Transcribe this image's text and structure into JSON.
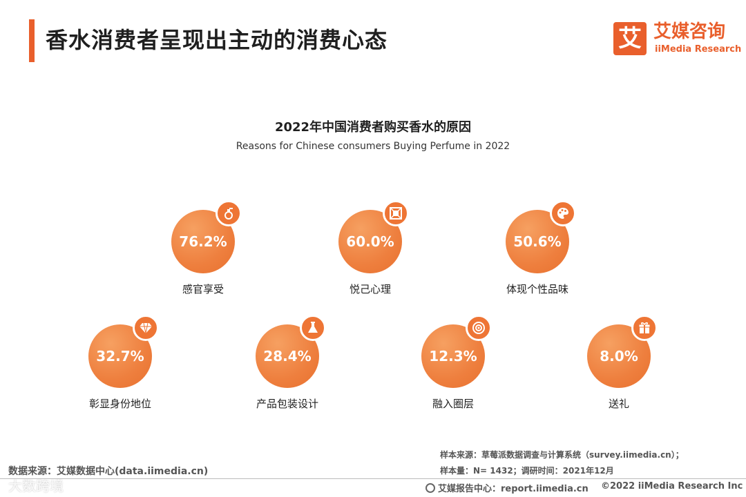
{
  "header": {
    "title": "香水消费者呈现出主动的消费心态",
    "logo_mark": "艾",
    "logo_cn": "艾媒咨询",
    "logo_en": "iiMedia Research"
  },
  "chart_data": {
    "type": "bubble-grid",
    "title": "2022年中国消费者购买香水的原因",
    "subtitle": "Reasons for Chinese consumers Buying Perfume in 2022",
    "unit": "%",
    "items": [
      {
        "label": "感官享受",
        "value": 76.2,
        "display": "76.2%",
        "icon": "perfume-bottle-icon"
      },
      {
        "label": "悦己心理",
        "value": 60.0,
        "display": "60.0%",
        "icon": "frame-icon"
      },
      {
        "label": "体现个性品味",
        "value": 50.6,
        "display": "50.6%",
        "icon": "palette-icon"
      },
      {
        "label": "彰显身份地位",
        "value": 32.7,
        "display": "32.7%",
        "icon": "diamond-icon"
      },
      {
        "label": "产品包装设计",
        "value": 28.4,
        "display": "28.4%",
        "icon": "flask-icon"
      },
      {
        "label": "融入圈层",
        "value": 12.3,
        "display": "12.3%",
        "icon": "target-icon"
      },
      {
        "label": "送礼",
        "value": 8.0,
        "display": "8.0%",
        "icon": "gift-icon"
      }
    ]
  },
  "footer": {
    "data_source": "数据来源：艾媒数据中心(data.iimedia.cn)",
    "watermark": "大数跨境",
    "sample_source": "样本来源：草莓派数据调查与计算系统（survey.iimedia.cn）；",
    "sample_size": "样本量：N= 1432；调研时间：2021年12月",
    "report_center": "艾媒报告中心：report.iimedia.cn",
    "copyright": "©2022  iiMedia Research  Inc"
  },
  "colors": {
    "accent": "#e95f2c",
    "bubble": "#ee7f3e"
  }
}
